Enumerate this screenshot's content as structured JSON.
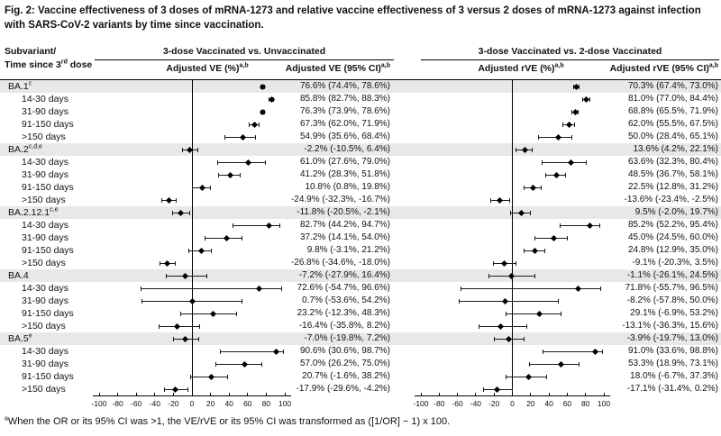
{
  "figure": {
    "title": "Fig. 2: Vaccine effectiveness of 3 doses of mRNA-1273 and relative vaccine effectiveness of 3 versus 2 doses of mRNA-1273 against infection with SARS-CoV-2 variants by time since vaccination.",
    "footnote_sup": "a",
    "footnote": "When the OR or its 95% CI was >1, the VE/rVE or its 95% CI was transformed as ([1/OR] − 1) x 100."
  },
  "header": {
    "row_label_line1": "Subvariant/",
    "row_label_line2_pre": "Time since 3",
    "row_label_line2_sup": "rd",
    "row_label_line2_post": " dose",
    "left_panel_title": "3-dose Vaccinated vs. Unvaccinated",
    "right_panel_title": "3-dose Vaccinated vs. 2-dose Vaccinated",
    "col_ve_plot": "Adjusted VE (%)",
    "col_ve_ci": "Adjusted VE (95% CI)",
    "col_rve_plot": "Adjusted rVE (%)",
    "col_rve_ci": "Adjusted rVE (95% CI)",
    "sup": "a,b"
  },
  "chart_data": {
    "type": "forest",
    "x_axis": {
      "range": [
        -100,
        100
      ],
      "ticks": [
        -100,
        -80,
        -60,
        -40,
        -20,
        0,
        20,
        40,
        60,
        80,
        100
      ]
    },
    "panels": [
      {
        "title": "3-dose Vaccinated vs. Unvaccinated",
        "value_key": "ve"
      },
      {
        "title": "3-dose Vaccinated vs. 2-dose Vaccinated",
        "value_key": "rve"
      }
    ],
    "rows": [
      {
        "label": "BA.1",
        "sup": "c",
        "group": true,
        "ve_text": "76.6% (74.4%, 78.6%)",
        "ve": [
          76.6,
          74.4,
          78.6
        ],
        "rve_text": "70.3% (67.4%, 73.0%)",
        "rve": [
          70.3,
          67.4,
          73.0
        ]
      },
      {
        "label": "14-30 days",
        "sup": "",
        "group": false,
        "ve_text": "85.8% (82.7%, 88.3%)",
        "ve": [
          85.8,
          82.7,
          88.3
        ],
        "rve_text": "81.0% (77.0%, 84.4%)",
        "rve": [
          81.0,
          77.0,
          84.4
        ]
      },
      {
        "label": "31-90 days",
        "sup": "",
        "group": false,
        "ve_text": "76.3% (73.9%, 78.6%)",
        "ve": [
          76.3,
          73.9,
          78.6
        ],
        "rve_text": "68.8% (65.5%, 71.9%)",
        "rve": [
          68.8,
          65.5,
          71.9
        ]
      },
      {
        "label": "91-150 days",
        "sup": "",
        "group": false,
        "ve_text": "67.3% (62.0%, 71.9%)",
        "ve": [
          67.3,
          62.0,
          71.9
        ],
        "rve_text": "62.0% (55.5%, 67.5%)",
        "rve": [
          62.0,
          55.5,
          67.5
        ]
      },
      {
        "label": ">150 days",
        "sup": "",
        "group": false,
        "ve_text": "54.9% (35.6%, 68.4%)",
        "ve": [
          54.9,
          35.6,
          68.4
        ],
        "rve_text": "50.0% (28.4%, 65.1%)",
        "rve": [
          50.0,
          28.4,
          65.1
        ]
      },
      {
        "label": "BA.2",
        "sup": "c,d,e",
        "group": true,
        "ve_text": "-2.2% (-10.5%, 6.4%)",
        "ve": [
          -2.2,
          -10.5,
          6.4
        ],
        "rve_text": "13.6% (4.2%, 22.1%)",
        "rve": [
          13.6,
          4.2,
          22.1
        ]
      },
      {
        "label": "14-30 days",
        "sup": "",
        "group": false,
        "ve_text": "61.0% (27.6%, 79.0%)",
        "ve": [
          61.0,
          27.6,
          79.0
        ],
        "rve_text": "63.6% (32.3%, 80.4%)",
        "rve": [
          63.6,
          32.3,
          80.4
        ]
      },
      {
        "label": "31-90 days",
        "sup": "",
        "group": false,
        "ve_text": "41.2% (28.3%, 51.8%)",
        "ve": [
          41.2,
          28.3,
          51.8
        ],
        "rve_text": "48.5% (36.7%, 58.1%)",
        "rve": [
          48.5,
          36.7,
          58.1
        ]
      },
      {
        "label": "91-150 days",
        "sup": "",
        "group": false,
        "ve_text": "10.8% (0.8%, 19.8%)",
        "ve": [
          10.8,
          0.8,
          19.8
        ],
        "rve_text": "22.5% (12.8%, 31.2%)",
        "rve": [
          22.5,
          12.8,
          31.2
        ]
      },
      {
        "label": ">150 days",
        "sup": "",
        "group": false,
        "ve_text": "-24.9% (-32.3%, -16.7%)",
        "ve": [
          -24.9,
          -32.3,
          -16.7
        ],
        "rve_text": "-13.6% (-23.4%, -2.5%)",
        "rve": [
          -13.6,
          -23.4,
          -2.5
        ]
      },
      {
        "label": "BA.2.12.1",
        "sup": "c,e",
        "group": true,
        "ve_text": "-11.8% (-20.5%, -2.1%)",
        "ve": [
          -11.8,
          -20.5,
          -2.1
        ],
        "rve_text": "9.5% (-2.0%, 19.7%)",
        "rve": [
          9.5,
          -2.0,
          19.7
        ]
      },
      {
        "label": "14-30 days",
        "sup": "",
        "group": false,
        "ve_text": "82.7% (44.2%, 94.7%)",
        "ve": [
          82.7,
          44.2,
          94.7
        ],
        "rve_text": "85.2% (52.2%, 95.4%)",
        "rve": [
          85.2,
          52.2,
          95.4
        ]
      },
      {
        "label": "31-90 days",
        "sup": "",
        "group": false,
        "ve_text": "37.2% (14.1%, 54.0%)",
        "ve": [
          37.2,
          14.1,
          54.0
        ],
        "rve_text": "45.0% (24.5%, 60.0%)",
        "rve": [
          45.0,
          24.5,
          60.0
        ]
      },
      {
        "label": "91-150 days",
        "sup": "",
        "group": false,
        "ve_text": "9.8% (-3.1%, 21.2%)",
        "ve": [
          9.8,
          -3.1,
          21.2
        ],
        "rve_text": "24.8% (12.9%, 35.0%)",
        "rve": [
          24.8,
          12.9,
          35.0
        ]
      },
      {
        "label": ">150 days",
        "sup": "",
        "group": false,
        "ve_text": "-26.8% (-34.6%, -18.0%)",
        "ve": [
          -26.8,
          -34.6,
          -18.0
        ],
        "rve_text": "-9.1% (-20.3%, 3.5%)",
        "rve": [
          -9.1,
          -20.3,
          3.5
        ]
      },
      {
        "label": "BA.4",
        "sup": "",
        "group": true,
        "ve_text": "-7.2% (-27.9%, 16.4%)",
        "ve": [
          -7.2,
          -27.9,
          16.4
        ],
        "rve_text": "-1.1% (-26.1%, 24.5%)",
        "rve": [
          -1.1,
          -26.1,
          24.5
        ]
      },
      {
        "label": "14-30 days",
        "sup": "",
        "group": false,
        "ve_text": "72.6% (-54.7%, 96.6%)",
        "ve": [
          72.6,
          -54.7,
          96.6
        ],
        "rve_text": "71.8% (-55.7%, 96.5%)",
        "rve": [
          71.8,
          -55.7,
          96.5
        ]
      },
      {
        "label": "31-90 days",
        "sup": "",
        "group": false,
        "ve_text": "0.7% (-53.6%, 54.2%)",
        "ve": [
          0.7,
          -53.6,
          54.2
        ],
        "rve_text": "-8.2% (-57.8%, 50.0%)",
        "rve": [
          -8.2,
          -57.8,
          50.0
        ]
      },
      {
        "label": "91-150 days",
        "sup": "",
        "group": false,
        "ve_text": "23.2% (-12.3%, 48.3%)",
        "ve": [
          23.2,
          -12.3,
          48.3
        ],
        "rve_text": "29.1% (-6.9%, 53.2%)",
        "rve": [
          29.1,
          -6.9,
          53.2
        ]
      },
      {
        "label": ">150 days",
        "sup": "",
        "group": false,
        "ve_text": "-16.4% (-35.8%, 8.2%)",
        "ve": [
          -16.4,
          -35.8,
          8.2
        ],
        "rve_text": "-13.1% (-36.3%, 15.6%)",
        "rve": [
          -13.1,
          -36.3,
          15.6
        ]
      },
      {
        "label": "BA.5",
        "sup": "e",
        "group": true,
        "ve_text": "-7.0% (-19.8%, 7.2%)",
        "ve": [
          -7.0,
          -19.8,
          7.2
        ],
        "rve_text": "-3.9% (-19.7%, 13.0%)",
        "rve": [
          -3.9,
          -19.7,
          13.0
        ]
      },
      {
        "label": "14-30 days",
        "sup": "",
        "group": false,
        "ve_text": "90.6% (30.6%, 98.7%)",
        "ve": [
          90.6,
          30.6,
          98.7
        ],
        "rve_text": "91.0% (33.6%, 98.8%)",
        "rve": [
          91.0,
          33.6,
          98.8
        ]
      },
      {
        "label": "31-90 days",
        "sup": "",
        "group": false,
        "ve_text": "57.0% (26.2%, 75.0%)",
        "ve": [
          57.0,
          26.2,
          75.0
        ],
        "rve_text": "53.3% (18.9%, 73.1%)",
        "rve": [
          53.3,
          18.9,
          73.1
        ]
      },
      {
        "label": "91-150 days",
        "sup": "",
        "group": false,
        "ve_text": "20.7% (-1.6%, 38.2%)",
        "ve": [
          20.7,
          -1.6,
          38.2
        ],
        "rve_text": "18.0% (-6.7%, 37.3%)",
        "rve": [
          18.0,
          -6.7,
          37.3
        ]
      },
      {
        "label": ">150 days",
        "sup": "",
        "group": false,
        "ve_text": "-17.9% (-29.6%, -4.2%)",
        "ve": [
          -17.9,
          -29.6,
          -4.2
        ],
        "rve_text": "-17.1% (-31.4%, 0.2%)",
        "rve": [
          -17.1,
          -31.4,
          0.2
        ]
      }
    ]
  }
}
